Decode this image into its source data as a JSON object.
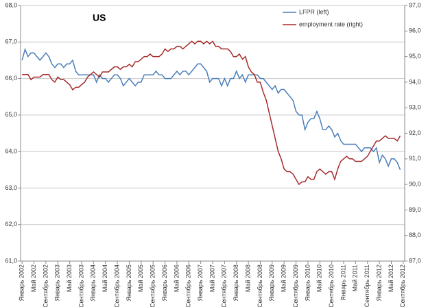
{
  "chart_data": {
    "type": "line",
    "title": "US",
    "categories": [
      "Январь 2002",
      null,
      null,
      null,
      "Май 2002",
      null,
      null,
      null,
      "Сентябрь 2002",
      null,
      null,
      null,
      "Январь 2003",
      null,
      null,
      null,
      "Май 2003",
      null,
      null,
      null,
      "Сентябрь 2003",
      null,
      null,
      null,
      "Январь 2004",
      null,
      null,
      null,
      "Май 2004",
      null,
      null,
      null,
      "Сентябрь 2004",
      null,
      null,
      null,
      "Январь 2005",
      null,
      null,
      null,
      "Май 2005",
      null,
      null,
      null,
      "Сентябрь 2005",
      null,
      null,
      null,
      "Январь 2006",
      null,
      null,
      null,
      "Май 2006",
      null,
      null,
      null,
      "Сентябрь 2006",
      null,
      null,
      null,
      "Январь 2007",
      null,
      null,
      null,
      "Май 2007",
      null,
      null,
      null,
      "Сентябрь 2007",
      null,
      null,
      null,
      "Январь 2008",
      null,
      null,
      null,
      "Май 2008",
      null,
      null,
      null,
      "Сентябрь 2008",
      null,
      null,
      null,
      "Январь 2009",
      null,
      null,
      null,
      "Май 2009",
      null,
      null,
      null,
      "Сентябрь 2009",
      null,
      null,
      null,
      "Январь 2010",
      null,
      null,
      null,
      "Май 2010",
      null,
      null,
      null,
      "Сентябрь 2010",
      null,
      null,
      null,
      "Январь 2011",
      null,
      null,
      null,
      "Май 2011",
      null,
      null,
      null,
      "Сентябрь 2011",
      null,
      null,
      null,
      "Январь 2012",
      null,
      null,
      null,
      "Май 2012",
      null,
      null,
      null,
      "Сентябрь 2012"
    ],
    "series": [
      {
        "name": "LFPR (left)",
        "color": "#4a7ebb",
        "axis": "y",
        "values": [
          66.5,
          66.8,
          66.6,
          66.7,
          66.7,
          66.6,
          66.5,
          66.6,
          66.7,
          66.6,
          66.4,
          66.3,
          66.4,
          66.4,
          66.3,
          66.4,
          66.4,
          66.5,
          66.2,
          66.1,
          66.1,
          66.1,
          66.1,
          66.1,
          66.1,
          65.9,
          66.1,
          66.0,
          66.0,
          65.9,
          66.0,
          66.1,
          66.1,
          66.0,
          65.8,
          65.9,
          66.0,
          65.9,
          65.8,
          65.9,
          65.9,
          66.1,
          66.1,
          66.1,
          66.1,
          66.2,
          66.1,
          66.1,
          66.0,
          66.0,
          66.0,
          66.1,
          66.2,
          66.1,
          66.2,
          66.2,
          66.1,
          66.2,
          66.3,
          66.4,
          66.4,
          66.3,
          66.2,
          65.9,
          66.0,
          66.0,
          66.0,
          65.8,
          66.0,
          65.8,
          66.0,
          66.0,
          66.2,
          66.0,
          66.1,
          65.9,
          66.1,
          66.1,
          66.1,
          66.1,
          66.0,
          66.0,
          65.9,
          65.8,
          65.7,
          65.8,
          65.6,
          65.7,
          65.7,
          65.6,
          65.5,
          65.4,
          65.1,
          65.0,
          65.0,
          64.6,
          64.8,
          64.9,
          64.9,
          65.1,
          64.9,
          64.6,
          64.6,
          64.7,
          64.6,
          64.4,
          64.5,
          64.3,
          64.2,
          64.2,
          64.2,
          64.2,
          64.2,
          64.1,
          64.0,
          64.1,
          64.1,
          64.1,
          64.0,
          64.1,
          63.7,
          63.9,
          63.8,
          63.6,
          63.8,
          63.8,
          63.7,
          63.5,
          null
        ]
      },
      {
        "name": "employment rate (right)",
        "color": "#a52a2a",
        "axis": "y2",
        "values": [
          94.3,
          94.3,
          94.3,
          94.1,
          94.2,
          94.2,
          94.2,
          94.3,
          94.3,
          94.3,
          94.1,
          94.0,
          94.2,
          94.1,
          94.1,
          94.0,
          93.9,
          93.7,
          93.8,
          93.8,
          93.9,
          94.0,
          94.2,
          94.3,
          94.4,
          94.3,
          94.2,
          94.4,
          94.4,
          94.4,
          94.5,
          94.6,
          94.6,
          94.5,
          94.6,
          94.6,
          94.7,
          94.6,
          94.8,
          94.8,
          94.9,
          95.0,
          95.0,
          95.1,
          95.0,
          95.0,
          95.0,
          95.1,
          95.3,
          95.2,
          95.3,
          95.3,
          95.4,
          95.4,
          95.3,
          95.4,
          95.5,
          95.6,
          95.5,
          95.6,
          95.6,
          95.5,
          95.6,
          95.5,
          95.6,
          95.4,
          95.4,
          95.3,
          95.3,
          95.3,
          95.2,
          95.0,
          95.0,
          95.1,
          94.9,
          95.0,
          94.6,
          94.4,
          94.3,
          94.0,
          94.0,
          93.6,
          93.3,
          92.8,
          92.3,
          91.8,
          91.3,
          91.0,
          90.6,
          90.5,
          90.5,
          90.4,
          90.2,
          90.0,
          90.1,
          90.1,
          90.3,
          90.2,
          90.2,
          90.5,
          90.6,
          90.5,
          90.4,
          90.5,
          90.5,
          90.2,
          90.6,
          90.9,
          91.0,
          91.1,
          91.0,
          91.0,
          90.9,
          90.9,
          90.9,
          91.0,
          91.1,
          91.3,
          91.5,
          91.7,
          91.7,
          91.8,
          91.9,
          91.8,
          91.8,
          91.8,
          91.7,
          91.9,
          null
        ]
      }
    ],
    "ylim": [
      61,
      68
    ],
    "yticks": [
      {
        "value": 61,
        "label": "61,0"
      },
      {
        "value": 62,
        "label": "62,0"
      },
      {
        "value": 63,
        "label": "63,0"
      },
      {
        "value": 64,
        "label": "64,0"
      },
      {
        "value": 65,
        "label": "65,0"
      },
      {
        "value": 66,
        "label": "66,0"
      },
      {
        "value": 67,
        "label": "67,0"
      },
      {
        "value": 68,
        "label": "68,0"
      }
    ],
    "y2lim": [
      87,
      97
    ],
    "y2ticks": [
      {
        "value": 87,
        "label": "87,0"
      },
      {
        "value": 88,
        "label": "88,0"
      },
      {
        "value": 89,
        "label": "89,0"
      },
      {
        "value": 90,
        "label": "90,0"
      },
      {
        "value": 91,
        "label": "91,0"
      },
      {
        "value": 92,
        "label": "92,0"
      },
      {
        "value": 93,
        "label": "93,0"
      },
      {
        "value": 94,
        "label": "94,0"
      },
      {
        "value": 95,
        "label": "95,0"
      },
      {
        "value": 96,
        "label": "96,0"
      },
      {
        "value": 97,
        "label": "97,0"
      }
    ],
    "grid": true,
    "legend": "upper right"
  }
}
